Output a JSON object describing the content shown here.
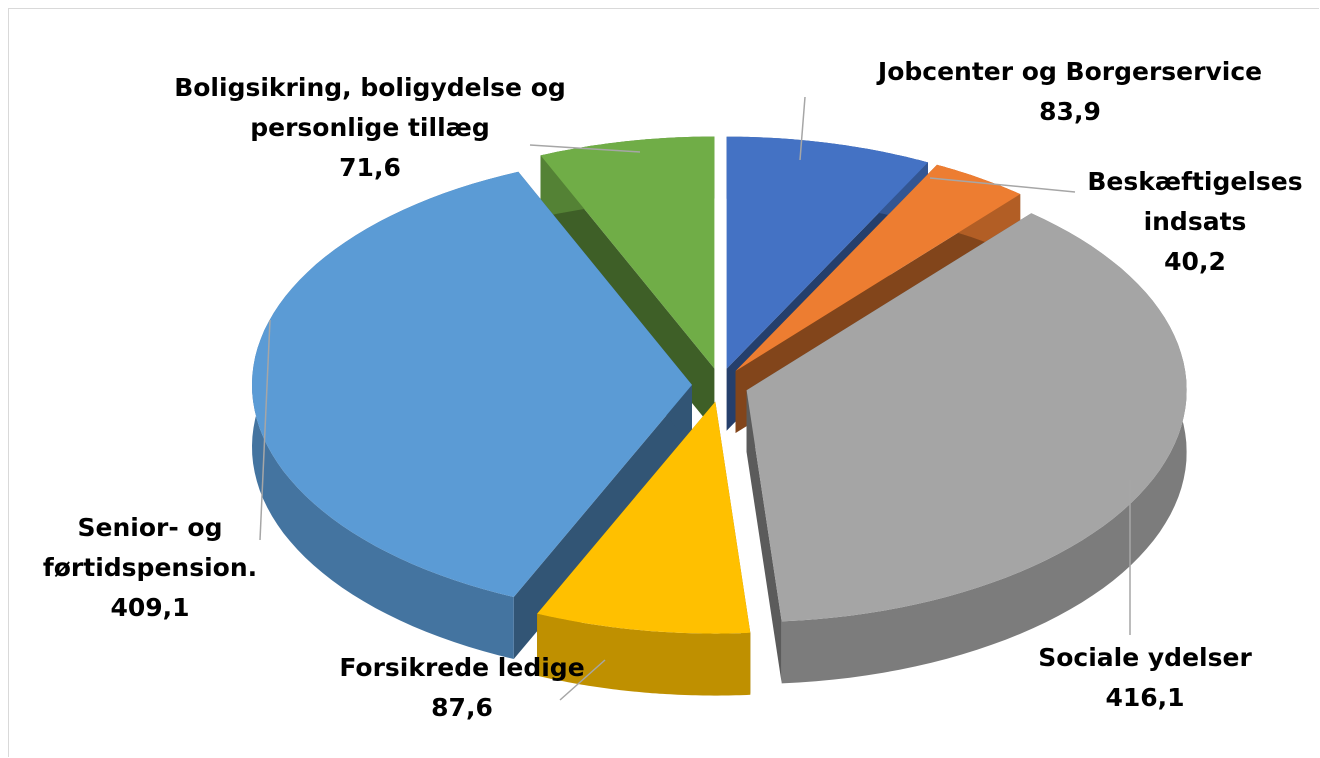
{
  "chart_data": {
    "type": "pie",
    "categories": [
      "Jobcenter og Borgerservice",
      "Beskæftigelses indsats",
      "Sociale ydelser",
      "Forsikrede ledige",
      "Senior- og førtidspension.",
      "Boligsikring, boligydelse og personlige tillæg"
    ],
    "values": [
      83.9,
      40.2,
      416.1,
      87.6,
      409.1,
      71.6
    ],
    "value_labels": [
      "83,9",
      "40,2",
      "416,1",
      "87,6",
      "409,1",
      "71,6"
    ],
    "colors": [
      "#4472c4",
      "#ed7d31",
      "#a5a5a5",
      "#ffc000",
      "#5b9bd5",
      "#70ad47"
    ]
  }
}
